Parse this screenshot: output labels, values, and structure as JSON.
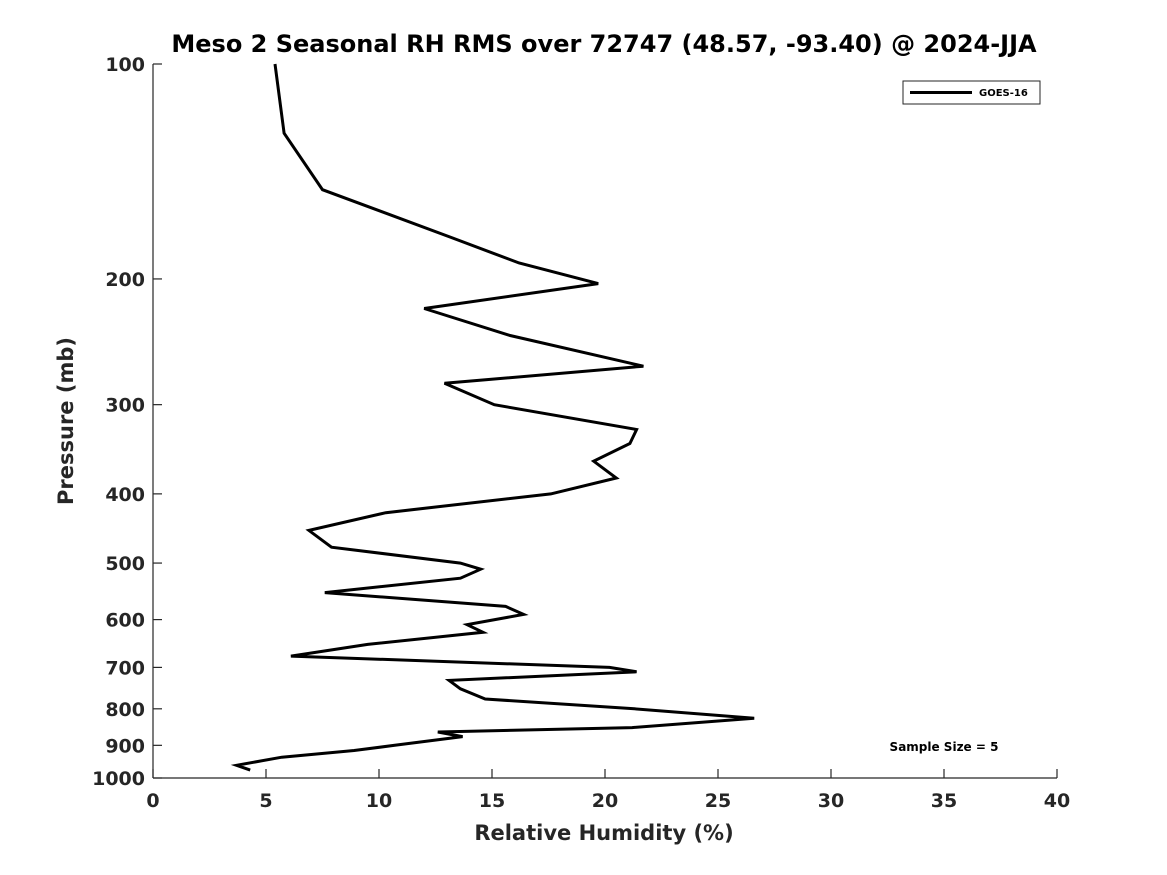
{
  "chart_data": {
    "type": "line",
    "title": "Meso 2 Seasonal RH RMS over 72747 (48.57, -93.40) @ 2024-JJA",
    "xlabel": "Relative Humidity (%)",
    "ylabel": "Pressure (mb)",
    "xlim": [
      0,
      40
    ],
    "ylim": [
      100,
      1000
    ],
    "y_scale": "log",
    "y_reversed": true,
    "x_ticks": [
      "0",
      "5",
      "10",
      "15",
      "20",
      "25",
      "30",
      "35",
      "40"
    ],
    "y_ticks": [
      "100",
      "200",
      "300",
      "400",
      "500",
      "600",
      "700",
      "800",
      "900",
      "1000"
    ],
    "grid": false,
    "legend_position": "top-right",
    "annotation": "Sample Size = 5",
    "series": [
      {
        "name": "GOES-16",
        "color": "#000000",
        "x": [
          5.4,
          5.8,
          7.5,
          13.2,
          16.2,
          19.7,
          12.0,
          15.8,
          21.7,
          12.9,
          15.1,
          21.4,
          21.1,
          19.5,
          20.5,
          17.6,
          10.3,
          6.9,
          7.9,
          13.6,
          14.5,
          13.6,
          7.6,
          15.6,
          16.4,
          13.9,
          14.6,
          9.5,
          6.1,
          20.2,
          21.4,
          13.1,
          13.6,
          14.7,
          21.3,
          26.6,
          21.2,
          12.6,
          13.7,
          10.7,
          8.9,
          5.7,
          3.7,
          4.3
        ],
        "y": [
          100,
          125,
          150,
          175,
          190,
          203,
          220,
          240,
          265,
          280,
          300,
          325,
          340,
          360,
          380,
          400,
          425,
          450,
          475,
          500,
          510,
          525,
          550,
          575,
          590,
          610,
          625,
          650,
          675,
          700,
          710,
          730,
          750,
          775,
          800,
          825,
          850,
          862,
          875,
          900,
          915,
          935,
          960,
          975
        ]
      }
    ]
  }
}
